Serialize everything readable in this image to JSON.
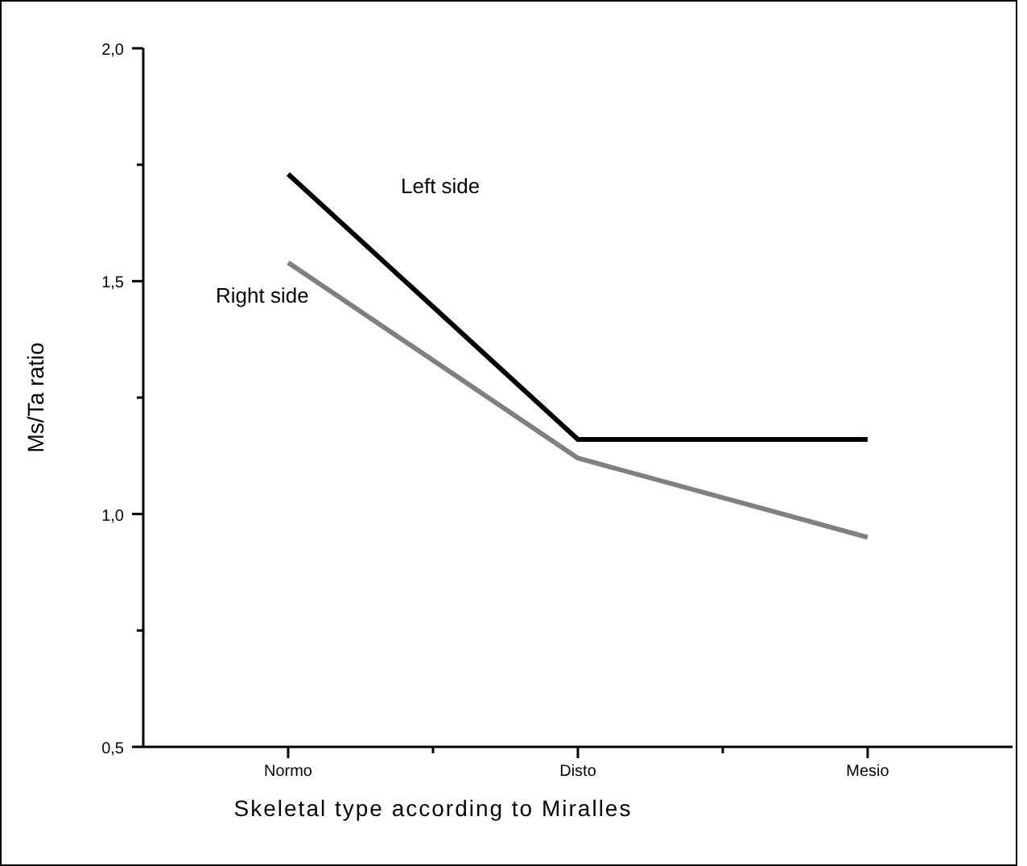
{
  "chart_data": {
    "type": "line",
    "xlabel": "Skeletal type according to Miralles",
    "ylabel": "Ms/Ta ratio",
    "categories": [
      "Normo",
      "Disto",
      "Mesio"
    ],
    "series": [
      {
        "name": "Left side",
        "color": "#000000",
        "values": [
          1.73,
          1.16,
          1.16
        ]
      },
      {
        "name": "Right side",
        "color": "#808080",
        "values": [
          1.54,
          1.12,
          0.95
        ]
      }
    ],
    "ylim": [
      0.5,
      2.0
    ],
    "yticks": [
      {
        "value": 0.5,
        "label": "0,5"
      },
      {
        "value": 0.75,
        "label": null
      },
      {
        "value": 1.0,
        "label": "1,0"
      },
      {
        "value": 1.25,
        "label": null
      },
      {
        "value": 1.5,
        "label": "1,5"
      },
      {
        "value": 1.75,
        "label": null
      },
      {
        "value": 2.0,
        "label": "2,0"
      }
    ],
    "grid": false,
    "marker": "none",
    "line_style": "solid"
  }
}
